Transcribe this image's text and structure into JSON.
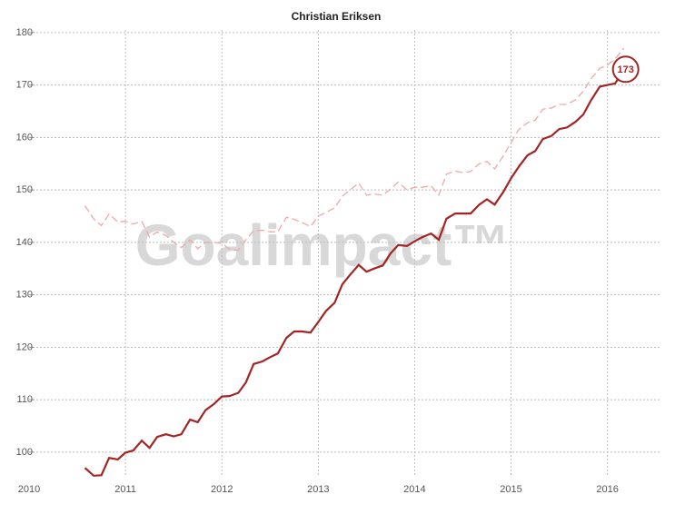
{
  "chart_data": {
    "type": "line",
    "title": "Christian Eriksen",
    "watermark": "Goalimpact™",
    "x": [
      2010.58,
      2010.67,
      2010.75,
      2010.83,
      2010.92,
      2011.0,
      2011.08,
      2011.17,
      2011.25,
      2011.33,
      2011.42,
      2011.5,
      2011.58,
      2011.67,
      2011.75,
      2011.83,
      2011.92,
      2012.0,
      2012.08,
      2012.17,
      2012.25,
      2012.33,
      2012.42,
      2012.5,
      2012.58,
      2012.67,
      2012.75,
      2012.83,
      2012.92,
      2013.0,
      2013.08,
      2013.17,
      2013.25,
      2013.33,
      2013.42,
      2013.5,
      2013.58,
      2013.67,
      2013.75,
      2013.83,
      2013.92,
      2014.0,
      2014.08,
      2014.17,
      2014.25,
      2014.33,
      2014.42,
      2014.5,
      2014.58,
      2014.67,
      2014.75,
      2014.83,
      2014.92,
      2015.0,
      2015.08,
      2015.17,
      2015.25,
      2015.33,
      2015.42,
      2015.5,
      2015.58,
      2015.67,
      2015.75,
      2015.83,
      2015.92,
      2016.0,
      2016.08,
      2016.17
    ],
    "series": [
      {
        "color": "#a32424",
        "dashed": false,
        "values": [
          97,
          95.5,
          95.6,
          98.9,
          98.6,
          99.9,
          100.3,
          102.2,
          100.8,
          102.9,
          103.4,
          103.0,
          103.4,
          106.2,
          105.7,
          108.0,
          109.2,
          110.6,
          110.7,
          111.3,
          113.3,
          116.8,
          117.3,
          118.1,
          118.8,
          121.8,
          123.0,
          123.0,
          122.8,
          124.8,
          126.9,
          128.5,
          132.0,
          133.8,
          135.7,
          134.4,
          135.0,
          135.6,
          137.9,
          139.5,
          139.3,
          140.2,
          141.0,
          141.7,
          140.5,
          144.5,
          145.5,
          145.5,
          145.5,
          147.2,
          148.2,
          147.2,
          149.6,
          152.2,
          154.4,
          156.6,
          157.4,
          159.7,
          160.3,
          161.6,
          161.9,
          163.0,
          164.4,
          167.1,
          169.7,
          170.0,
          170.3,
          173
        ]
      },
      {
        "color": "#f0a8a8",
        "dashed": true,
        "values": [
          147,
          144.5,
          143.2,
          145.4,
          143.9,
          144.0,
          143.5,
          144.0,
          141.0,
          142.0,
          141.3,
          140.0,
          139.0,
          140.5,
          138.8,
          140.0,
          140.0,
          139.8,
          138.7,
          138.5,
          140.5,
          142.2,
          142.3,
          142.0,
          142.0,
          144.8,
          144.4,
          143.8,
          143.0,
          145.0,
          145.7,
          146.6,
          148.8,
          150.0,
          151.3,
          149.0,
          149.2,
          149.0,
          150.2,
          151.5,
          150.0,
          150.5,
          150.5,
          150.8,
          149.0,
          153.0,
          153.6,
          153.3,
          153.5,
          155.0,
          155.4,
          154.0,
          156.5,
          159.0,
          161.5,
          162.8,
          163.3,
          165.4,
          165.6,
          166.3,
          166.3,
          167.2,
          168.8,
          171.2,
          173.2,
          173.8,
          175.0,
          177.0
        ]
      }
    ],
    "xlim": [
      2010,
      2016.55
    ],
    "xticks": [
      2010,
      2011,
      2012,
      2013,
      2014,
      2015,
      2016
    ],
    "ylim": [
      95.3,
      180.5
    ],
    "yticks": [
      100,
      110,
      120,
      130,
      140,
      150,
      160,
      170,
      180
    ],
    "grid": true
  }
}
